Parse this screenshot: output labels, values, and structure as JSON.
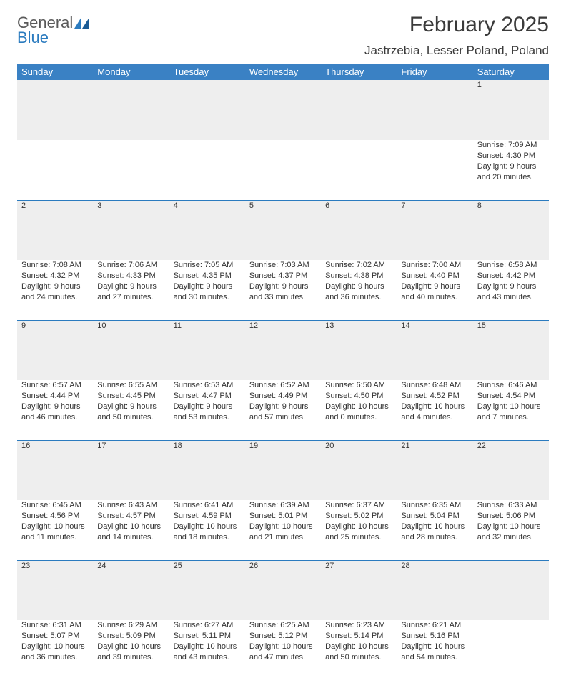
{
  "logo": {
    "text_gray": "General",
    "text_blue": "Blue"
  },
  "title": "February 2025",
  "location": "Jastrzebia, Lesser Poland, Poland",
  "colors": {
    "header_bg": "#3a81c4",
    "accent": "#2b7bbf",
    "rule": "#2b7bbf",
    "daynum_bg": "#eeeeee",
    "text": "#333333",
    "title_text": "#3a3a3a"
  },
  "fonts": {
    "family": "Arial",
    "title_pt": 30,
    "location_pt": 17,
    "header_pt": 13,
    "body_pt": 11,
    "daynum_pt": 12
  },
  "day_headers": [
    "Sunday",
    "Monday",
    "Tuesday",
    "Wednesday",
    "Thursday",
    "Friday",
    "Saturday"
  ],
  "weeks": [
    [
      null,
      null,
      null,
      null,
      null,
      null,
      {
        "n": "1",
        "sunrise": "7:09 AM",
        "sunset": "4:30 PM",
        "daylight": "9 hours and 20 minutes."
      }
    ],
    [
      {
        "n": "2",
        "sunrise": "7:08 AM",
        "sunset": "4:32 PM",
        "daylight": "9 hours and 24 minutes."
      },
      {
        "n": "3",
        "sunrise": "7:06 AM",
        "sunset": "4:33 PM",
        "daylight": "9 hours and 27 minutes."
      },
      {
        "n": "4",
        "sunrise": "7:05 AM",
        "sunset": "4:35 PM",
        "daylight": "9 hours and 30 minutes."
      },
      {
        "n": "5",
        "sunrise": "7:03 AM",
        "sunset": "4:37 PM",
        "daylight": "9 hours and 33 minutes."
      },
      {
        "n": "6",
        "sunrise": "7:02 AM",
        "sunset": "4:38 PM",
        "daylight": "9 hours and 36 minutes."
      },
      {
        "n": "7",
        "sunrise": "7:00 AM",
        "sunset": "4:40 PM",
        "daylight": "9 hours and 40 minutes."
      },
      {
        "n": "8",
        "sunrise": "6:58 AM",
        "sunset": "4:42 PM",
        "daylight": "9 hours and 43 minutes."
      }
    ],
    [
      {
        "n": "9",
        "sunrise": "6:57 AM",
        "sunset": "4:44 PM",
        "daylight": "9 hours and 46 minutes."
      },
      {
        "n": "10",
        "sunrise": "6:55 AM",
        "sunset": "4:45 PM",
        "daylight": "9 hours and 50 minutes."
      },
      {
        "n": "11",
        "sunrise": "6:53 AM",
        "sunset": "4:47 PM",
        "daylight": "9 hours and 53 minutes."
      },
      {
        "n": "12",
        "sunrise": "6:52 AM",
        "sunset": "4:49 PM",
        "daylight": "9 hours and 57 minutes."
      },
      {
        "n": "13",
        "sunrise": "6:50 AM",
        "sunset": "4:50 PM",
        "daylight": "10 hours and 0 minutes."
      },
      {
        "n": "14",
        "sunrise": "6:48 AM",
        "sunset": "4:52 PM",
        "daylight": "10 hours and 4 minutes."
      },
      {
        "n": "15",
        "sunrise": "6:46 AM",
        "sunset": "4:54 PM",
        "daylight": "10 hours and 7 minutes."
      }
    ],
    [
      {
        "n": "16",
        "sunrise": "6:45 AM",
        "sunset": "4:56 PM",
        "daylight": "10 hours and 11 minutes."
      },
      {
        "n": "17",
        "sunrise": "6:43 AM",
        "sunset": "4:57 PM",
        "daylight": "10 hours and 14 minutes."
      },
      {
        "n": "18",
        "sunrise": "6:41 AM",
        "sunset": "4:59 PM",
        "daylight": "10 hours and 18 minutes."
      },
      {
        "n": "19",
        "sunrise": "6:39 AM",
        "sunset": "5:01 PM",
        "daylight": "10 hours and 21 minutes."
      },
      {
        "n": "20",
        "sunrise": "6:37 AM",
        "sunset": "5:02 PM",
        "daylight": "10 hours and 25 minutes."
      },
      {
        "n": "21",
        "sunrise": "6:35 AM",
        "sunset": "5:04 PM",
        "daylight": "10 hours and 28 minutes."
      },
      {
        "n": "22",
        "sunrise": "6:33 AM",
        "sunset": "5:06 PM",
        "daylight": "10 hours and 32 minutes."
      }
    ],
    [
      {
        "n": "23",
        "sunrise": "6:31 AM",
        "sunset": "5:07 PM",
        "daylight": "10 hours and 36 minutes."
      },
      {
        "n": "24",
        "sunrise": "6:29 AM",
        "sunset": "5:09 PM",
        "daylight": "10 hours and 39 minutes."
      },
      {
        "n": "25",
        "sunrise": "6:27 AM",
        "sunset": "5:11 PM",
        "daylight": "10 hours and 43 minutes."
      },
      {
        "n": "26",
        "sunrise": "6:25 AM",
        "sunset": "5:12 PM",
        "daylight": "10 hours and 47 minutes."
      },
      {
        "n": "27",
        "sunrise": "6:23 AM",
        "sunset": "5:14 PM",
        "daylight": "10 hours and 50 minutes."
      },
      {
        "n": "28",
        "sunrise": "6:21 AM",
        "sunset": "5:16 PM",
        "daylight": "10 hours and 54 minutes."
      },
      null
    ]
  ],
  "labels": {
    "sunrise": "Sunrise:",
    "sunset": "Sunset:",
    "daylight": "Daylight:"
  }
}
